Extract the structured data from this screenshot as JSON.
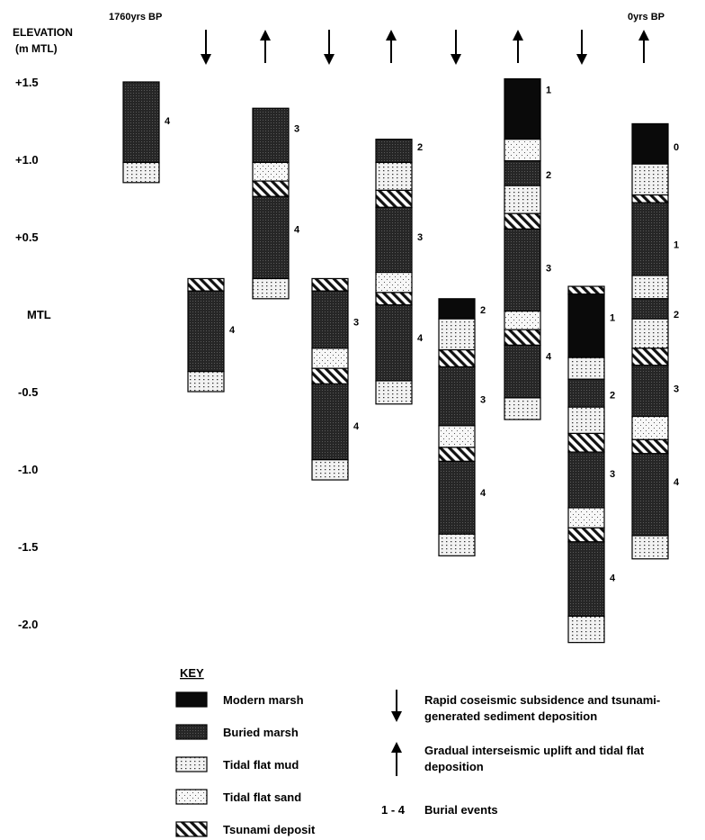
{
  "axis": {
    "title_line1": "ELEVATION",
    "title_line2": "(m  MTL)",
    "ticks": [
      {
        "label": "+1.5",
        "value": 1.5
      },
      {
        "label": "+1.0",
        "value": 1.0
      },
      {
        "label": "+0.5",
        "value": 0.5
      },
      {
        "label": "MTL",
        "value": 0.0
      },
      {
        "label": "-0.5",
        "value": -0.5
      },
      {
        "label": "-1.0",
        "value": -1.0
      },
      {
        "label": "-1.5",
        "value": -1.5
      },
      {
        "label": "-2.0",
        "value": -2.0
      }
    ]
  },
  "header": {
    "left_label": "1760yrs  BP",
    "right_label": "0yrs  BP",
    "arrows": [
      "down",
      "up",
      "down",
      "up",
      "down",
      "up",
      "down",
      "up"
    ]
  },
  "colors": {
    "modern_marsh": "#0a0a0a",
    "buried_marsh": "#262626",
    "tidal_flat_mud": "#f2f2f2",
    "tidal_flat_sand": "#f7f7f7",
    "tsunami_deposit": "#ffffff"
  },
  "columns": [
    {
      "layers": [
        {
          "type": "buried_marsh",
          "top": 1.5,
          "bottom": 0.98
        },
        {
          "type": "tidal_flat_mud",
          "top": 0.98,
          "bottom": 0.85
        }
      ],
      "labels": [
        {
          "text": "4",
          "at": 1.25
        }
      ]
    },
    {
      "layers": [
        {
          "type": "tsunami_deposit",
          "top": 0.23,
          "bottom": 0.15
        },
        {
          "type": "buried_marsh",
          "top": 0.15,
          "bottom": -0.37
        },
        {
          "type": "tidal_flat_mud",
          "top": -0.37,
          "bottom": -0.5
        }
      ],
      "labels": [
        {
          "text": "4",
          "at": -0.1
        }
      ]
    },
    {
      "layers": [
        {
          "type": "buried_marsh",
          "top": 1.33,
          "bottom": 0.98
        },
        {
          "type": "tidal_flat_sand",
          "top": 0.98,
          "bottom": 0.86
        },
        {
          "type": "tsunami_deposit",
          "top": 0.86,
          "bottom": 0.76
        },
        {
          "type": "buried_marsh",
          "top": 0.76,
          "bottom": 0.23
        },
        {
          "type": "tidal_flat_mud",
          "top": 0.23,
          "bottom": 0.1
        }
      ],
      "labels": [
        {
          "text": "3",
          "at": 1.2
        },
        {
          "text": "4",
          "at": 0.55
        }
      ]
    },
    {
      "layers": [
        {
          "type": "tsunami_deposit",
          "top": 0.23,
          "bottom": 0.15
        },
        {
          "type": "buried_marsh",
          "top": 0.15,
          "bottom": -0.22
        },
        {
          "type": "tidal_flat_sand",
          "top": -0.22,
          "bottom": -0.35
        },
        {
          "type": "tsunami_deposit",
          "top": -0.35,
          "bottom": -0.45
        },
        {
          "type": "buried_marsh",
          "top": -0.45,
          "bottom": -0.94
        },
        {
          "type": "tidal_flat_mud",
          "top": -0.94,
          "bottom": -1.07
        }
      ],
      "labels": [
        {
          "text": "3",
          "at": -0.05
        },
        {
          "text": "4",
          "at": -0.72
        }
      ]
    },
    {
      "layers": [
        {
          "type": "buried_marsh",
          "top": 1.13,
          "bottom": 0.98
        },
        {
          "type": "tidal_flat_mud",
          "top": 0.98,
          "bottom": 0.8
        },
        {
          "type": "tsunami_deposit",
          "top": 0.8,
          "bottom": 0.69
        },
        {
          "type": "buried_marsh",
          "top": 0.69,
          "bottom": 0.27
        },
        {
          "type": "tidal_flat_sand",
          "top": 0.27,
          "bottom": 0.14
        },
        {
          "type": "tsunami_deposit",
          "top": 0.14,
          "bottom": 0.06
        },
        {
          "type": "buried_marsh",
          "top": 0.06,
          "bottom": -0.43
        },
        {
          "type": "tidal_flat_mud",
          "top": -0.43,
          "bottom": -0.58
        }
      ],
      "labels": [
        {
          "text": "2",
          "at": 1.08
        },
        {
          "text": "3",
          "at": 0.5
        },
        {
          "text": "4",
          "at": -0.15
        }
      ]
    },
    {
      "layers": [
        {
          "type": "modern_marsh",
          "top": 0.1,
          "bottom": -0.03
        },
        {
          "type": "tidal_flat_mud",
          "top": -0.03,
          "bottom": -0.23
        },
        {
          "type": "tsunami_deposit",
          "top": -0.23,
          "bottom": -0.34
        },
        {
          "type": "buried_marsh",
          "top": -0.34,
          "bottom": -0.72
        },
        {
          "type": "tidal_flat_sand",
          "top": -0.72,
          "bottom": -0.86
        },
        {
          "type": "tsunami_deposit",
          "top": -0.86,
          "bottom": -0.95
        },
        {
          "type": "buried_marsh",
          "top": -0.95,
          "bottom": -1.42
        },
        {
          "type": "tidal_flat_mud",
          "top": -1.42,
          "bottom": -1.56
        }
      ],
      "labels": [
        {
          "text": "2",
          "at": 0.03
        },
        {
          "text": "3",
          "at": -0.55
        },
        {
          "text": "4",
          "at": -1.15
        }
      ]
    },
    {
      "layers": [
        {
          "type": "modern_marsh",
          "top": 1.52,
          "bottom": 1.13
        },
        {
          "type": "tidal_flat_sand",
          "top": 1.13,
          "bottom": 0.99
        },
        {
          "type": "buried_marsh",
          "top": 0.99,
          "bottom": 0.83
        },
        {
          "type": "tidal_flat_mud",
          "top": 0.83,
          "bottom": 0.65
        },
        {
          "type": "tsunami_deposit",
          "top": 0.65,
          "bottom": 0.55
        },
        {
          "type": "buried_marsh",
          "top": 0.55,
          "bottom": 0.02
        },
        {
          "type": "tidal_flat_sand",
          "top": 0.02,
          "bottom": -0.1
        },
        {
          "type": "tsunami_deposit",
          "top": -0.1,
          "bottom": -0.2
        },
        {
          "type": "buried_marsh",
          "top": -0.2,
          "bottom": -0.54
        },
        {
          "type": "tidal_flat_mud",
          "top": -0.54,
          "bottom": -0.68
        }
      ],
      "labels": [
        {
          "text": "1",
          "at": 1.45
        },
        {
          "text": "2",
          "at": 0.9
        },
        {
          "text": "3",
          "at": 0.3
        },
        {
          "text": "4",
          "at": -0.27
        }
      ]
    },
    {
      "layers": [
        {
          "type": "tsunami_deposit",
          "top": 0.18,
          "bottom": 0.13
        },
        {
          "type": "modern_marsh",
          "top": 0.13,
          "bottom": -0.28
        },
        {
          "type": "tidal_flat_mud",
          "top": -0.28,
          "bottom": -0.42
        },
        {
          "type": "buried_marsh",
          "top": -0.42,
          "bottom": -0.6
        },
        {
          "type": "tidal_flat_mud",
          "top": -0.6,
          "bottom": -0.77
        },
        {
          "type": "tsunami_deposit",
          "top": -0.77,
          "bottom": -0.89
        },
        {
          "type": "buried_marsh",
          "top": -0.89,
          "bottom": -1.25
        },
        {
          "type": "tidal_flat_sand",
          "top": -1.25,
          "bottom": -1.38
        },
        {
          "type": "tsunami_deposit",
          "top": -1.38,
          "bottom": -1.47
        },
        {
          "type": "buried_marsh",
          "top": -1.47,
          "bottom": -1.95
        },
        {
          "type": "tidal_flat_mud",
          "top": -1.95,
          "bottom": -2.12
        }
      ],
      "labels": [
        {
          "text": "1",
          "at": -0.02
        },
        {
          "text": "2",
          "at": -0.52
        },
        {
          "text": "3",
          "at": -1.03
        },
        {
          "text": "4",
          "at": -1.7
        }
      ]
    },
    {
      "layers": [
        {
          "type": "modern_marsh",
          "top": 1.23,
          "bottom": 0.97
        },
        {
          "type": "tidal_flat_mud",
          "top": 0.97,
          "bottom": 0.77
        },
        {
          "type": "tsunami_deposit",
          "top": 0.77,
          "bottom": 0.72
        },
        {
          "type": "buried_marsh",
          "top": 0.72,
          "bottom": 0.25
        },
        {
          "type": "tidal_flat_mud",
          "top": 0.25,
          "bottom": 0.1
        },
        {
          "type": "buried_marsh",
          "top": 0.1,
          "bottom": -0.03
        },
        {
          "type": "tidal_flat_mud",
          "top": -0.03,
          "bottom": -0.22
        },
        {
          "type": "tsunami_deposit",
          "top": -0.22,
          "bottom": -0.33
        },
        {
          "type": "buried_marsh",
          "top": -0.33,
          "bottom": -0.66
        },
        {
          "type": "tidal_flat_sand",
          "top": -0.66,
          "bottom": -0.81
        },
        {
          "type": "tsunami_deposit",
          "top": -0.81,
          "bottom": -0.9
        },
        {
          "type": "buried_marsh",
          "top": -0.9,
          "bottom": -1.43
        },
        {
          "type": "tidal_flat_mud",
          "top": -1.43,
          "bottom": -1.58
        }
      ],
      "labels": [
        {
          "text": "0",
          "at": 1.08
        },
        {
          "text": "1",
          "at": 0.45
        },
        {
          "text": "2",
          "at": 0.0
        },
        {
          "text": "3",
          "at": -0.48
        },
        {
          "text": "4",
          "at": -1.08
        }
      ]
    }
  ],
  "key": {
    "title": "KEY",
    "items": [
      {
        "type": "modern_marsh",
        "label": "Modern marsh"
      },
      {
        "type": "buried_marsh",
        "label": "Buried marsh"
      },
      {
        "type": "tidal_flat_mud",
        "label": "Tidal flat mud"
      },
      {
        "type": "tidal_flat_sand",
        "label": "Tidal flat sand"
      },
      {
        "type": "tsunami_deposit",
        "label": "Tsunami deposit"
      }
    ],
    "down_arrow": {
      "line1": "Rapid coseismic subsidence and tsunami-",
      "line2": "generated sediment deposition"
    },
    "up_arrow": {
      "line1": "Gradual interseismic uplift and tidal flat",
      "line2": "deposition"
    },
    "burial": {
      "range": "1 - 4",
      "label": "Burial events"
    }
  }
}
